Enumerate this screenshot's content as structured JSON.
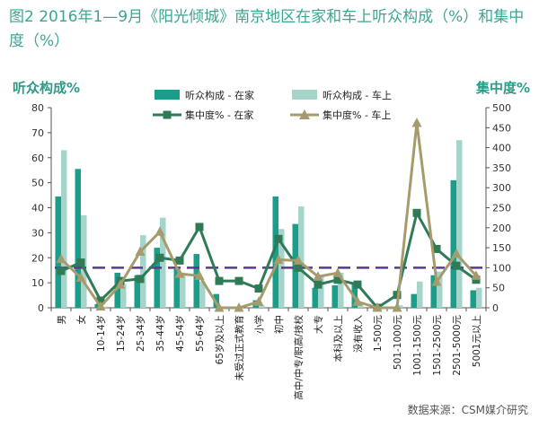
{
  "title": "图2 2016年1—9月《阳光倾城》南京地区在家和车上听众构成（%）和集中度（%）",
  "source": "数据来源：CSM媒介研究",
  "chart_data": {
    "type": "bar",
    "left_axis_title": "听众构成%",
    "right_axis_title": "集中度%",
    "ylim_left": [
      0,
      80
    ],
    "yticks_left": [
      0,
      10,
      20,
      30,
      40,
      50,
      60,
      70,
      80
    ],
    "ylim_right": [
      0,
      500
    ],
    "yticks_right": [
      0,
      50,
      100,
      150,
      200,
      250,
      300,
      350,
      400,
      450,
      500
    ],
    "reference_line": 100,
    "categories": [
      "男",
      "女",
      "10-14岁",
      "15-24岁",
      "25-34岁",
      "35-44岁",
      "45-54岁",
      "55-64岁",
      "65岁及以上",
      "未受过正式教育",
      "小学",
      "初中",
      "高中/中专/职高/技校",
      "大专",
      "本科及以上",
      "没有收入",
      "1-500元",
      "501-1000元",
      "1001-1500元",
      "1501-2500元",
      "2501-5000元",
      "5001元以上"
    ],
    "series": [
      {
        "name": "听众构成 - 在家",
        "type": "bar",
        "axis": "left",
        "color": "#1a9e8a",
        "values": [
          44.5,
          55.5,
          1.5,
          14,
          13,
          24,
          15.5,
          21.5,
          5.5,
          0.5,
          3,
          44.5,
          33.5,
          8,
          9,
          10,
          0,
          0,
          5.5,
          13,
          51,
          7
        ]
      },
      {
        "name": "听众构成 - 车上",
        "type": "bar",
        "axis": "left",
        "color": "#a5d4cb",
        "values": [
          63,
          37,
          0.5,
          9.5,
          29,
          36,
          13.5,
          10.5,
          0,
          0,
          1,
          31.5,
          40.5,
          13,
          14,
          2,
          0,
          1,
          10.5,
          14.5,
          67,
          8
        ]
      },
      {
        "name": "集中度% - 在家",
        "type": "line",
        "axis": "right",
        "color": "#2f7a57",
        "marker": "square",
        "values": [
          92,
          113,
          18,
          67,
          72,
          125,
          118,
          202,
          67,
          67,
          48,
          172,
          100,
          58,
          70,
          58,
          0,
          32,
          237,
          147,
          105,
          70
        ]
      },
      {
        "name": "集中度% - 车上",
        "type": "line",
        "axis": "right",
        "color": "#a69b6c",
        "marker": "triangle",
        "values": [
          122,
          75,
          3,
          58,
          140,
          190,
          85,
          80,
          0,
          0,
          15,
          120,
          118,
          78,
          87,
          15,
          0,
          0,
          462,
          65,
          135,
          80
        ]
      }
    ],
    "legend_position": "top",
    "grid": false
  }
}
